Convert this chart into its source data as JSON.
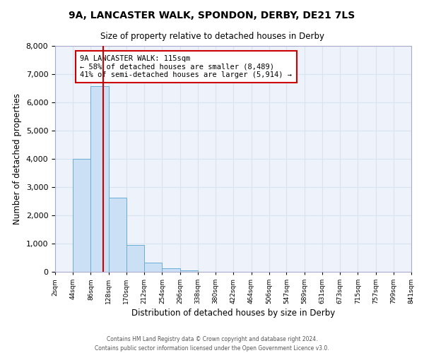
{
  "title": "9A, LANCASTER WALK, SPONDON, DERBY, DE21 7LS",
  "subtitle": "Size of property relative to detached houses in Derby",
  "xlabel": "Distribution of detached houses by size in Derby",
  "ylabel": "Number of detached properties",
  "bin_edges": [
    2,
    44,
    86,
    128,
    170,
    212,
    254,
    296,
    338,
    380,
    422,
    464,
    506,
    547,
    589,
    631,
    673,
    715,
    757,
    799,
    841
  ],
  "bar_heights": [
    4,
    3990,
    6570,
    2620,
    950,
    320,
    120,
    60,
    0,
    0,
    0,
    0,
    0,
    0,
    0,
    0,
    0,
    0,
    0,
    0
  ],
  "bar_color": "#cce0f5",
  "bar_edge_color": "#6aaed6",
  "red_line_x": 115,
  "annotation_line1": "9A LANCASTER WALK: 115sqm",
  "annotation_line2": "← 58% of detached houses are smaller (8,489)",
  "annotation_line3": "41% of semi-detached houses are larger (5,914) →",
  "annotation_box_facecolor": "#ffffff",
  "annotation_box_edgecolor": "#cc0000",
  "red_line_color": "#cc0000",
  "ylim": [
    0,
    8000
  ],
  "yticks": [
    0,
    1000,
    2000,
    3000,
    4000,
    5000,
    6000,
    7000,
    8000
  ],
  "tick_labels": [
    "2sqm",
    "44sqm",
    "86sqm",
    "128sqm",
    "170sqm",
    "212sqm",
    "254sqm",
    "296sqm",
    "338sqm",
    "380sqm",
    "422sqm",
    "464sqm",
    "506sqm",
    "547sqm",
    "589sqm",
    "631sqm",
    "673sqm",
    "715sqm",
    "757sqm",
    "799sqm",
    "841sqm"
  ],
  "footer_line1": "Contains HM Land Registry data © Crown copyright and database right 2024.",
  "footer_line2": "Contains public sector information licensed under the Open Government Licence v3.0.",
  "grid_color": "#d8e4f0",
  "fig_facecolor": "#ffffff",
  "axes_facecolor": "#eef2fa"
}
